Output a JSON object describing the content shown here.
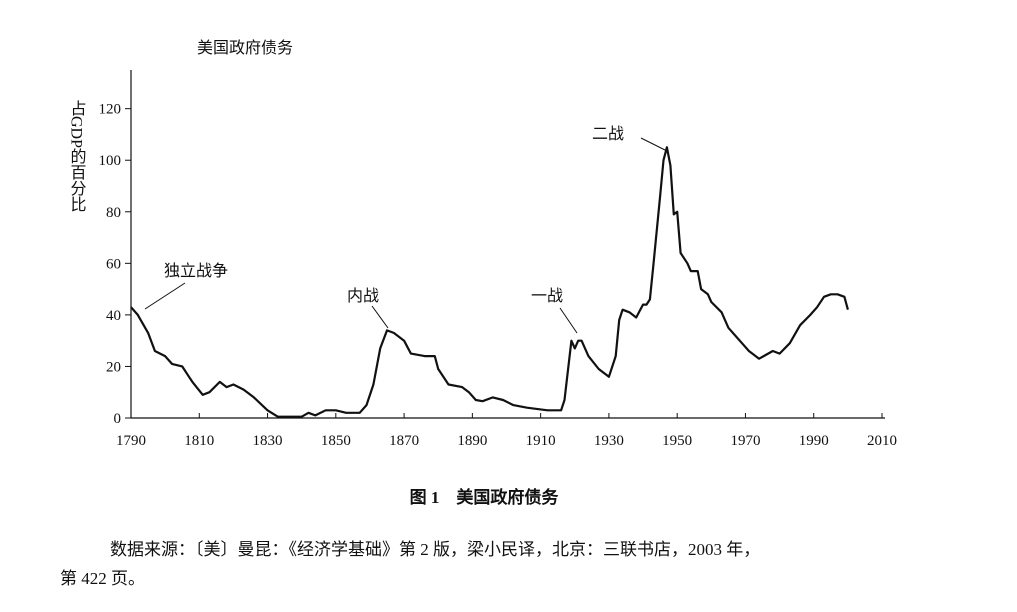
{
  "chart_data": {
    "type": "line",
    "title": "美国政府债务",
    "y_label": "占GDP的百分比",
    "x": [
      1790,
      1792,
      1795,
      1797,
      1800,
      1802,
      1805,
      1807,
      1808,
      1811,
      1813,
      1816,
      1818,
      1820,
      1823,
      1826,
      1830,
      1833,
      1840,
      1842,
      1844,
      1847,
      1850,
      1853,
      1857,
      1859,
      1861,
      1863,
      1865,
      1867,
      1870,
      1872,
      1876,
      1879,
      1880,
      1883,
      1887,
      1889,
      1891,
      1893,
      1896,
      1899,
      1902,
      1906,
      1912,
      1916,
      1917,
      1919,
      1920,
      1921,
      1922,
      1924,
      1927,
      1930,
      1932,
      1933,
      1934,
      1936,
      1938,
      1940,
      1941,
      1942,
      1943,
      1945,
      1946,
      1947,
      1948,
      1949,
      1950,
      1951,
      1953,
      1954,
      1956,
      1957,
      1959,
      1960,
      1963,
      1965,
      1967,
      1969,
      1971,
      1974,
      1978,
      1980,
      1983,
      1986,
      1989,
      1991,
      1993,
      1995,
      1997,
      1999,
      2000
    ],
    "values": [
      43,
      40,
      33,
      26,
      24,
      21,
      20,
      16,
      14,
      9,
      10,
      14,
      12,
      13,
      11,
      8,
      3,
      0.5,
      0.5,
      2,
      1,
      3,
      3,
      2,
      2,
      5,
      13,
      27,
      34,
      33,
      30,
      25,
      24,
      24,
      19,
      13,
      12,
      10,
      7,
      6.5,
      8,
      7,
      5,
      4,
      3,
      3,
      7,
      30,
      27,
      30,
      30,
      24,
      19,
      16,
      24,
      38,
      42,
      41,
      39,
      44,
      44,
      46,
      59,
      86,
      100,
      105,
      98,
      79,
      80,
      64,
      60,
      57,
      57,
      50,
      48,
      45,
      41,
      35,
      32,
      29,
      26,
      23,
      26,
      25,
      29,
      36,
      40,
      43,
      47,
      48,
      48,
      47,
      42
    ],
    "color": "#111111",
    "xlim": [
      1790,
      2010
    ],
    "xticks": [
      1790,
      1810,
      1830,
      1850,
      1870,
      1890,
      1910,
      1930,
      1950,
      1970,
      1990,
      2010
    ],
    "ylim": [
      0,
      135
    ],
    "yticks": [
      0,
      20,
      40,
      60,
      80,
      100,
      120
    ],
    "annotations": [
      {
        "text": "独立战争"
      },
      {
        "text": "内战"
      },
      {
        "text": "一战"
      },
      {
        "text": "二战"
      }
    ]
  },
  "figure_caption": "图 1　美国政府债务",
  "source_lines": [
    "数据来源：〔美〕曼昆：《经济学基础》第 2 版，梁小民译，北京：三联书店，2003 年，",
    "第 422 页。"
  ]
}
